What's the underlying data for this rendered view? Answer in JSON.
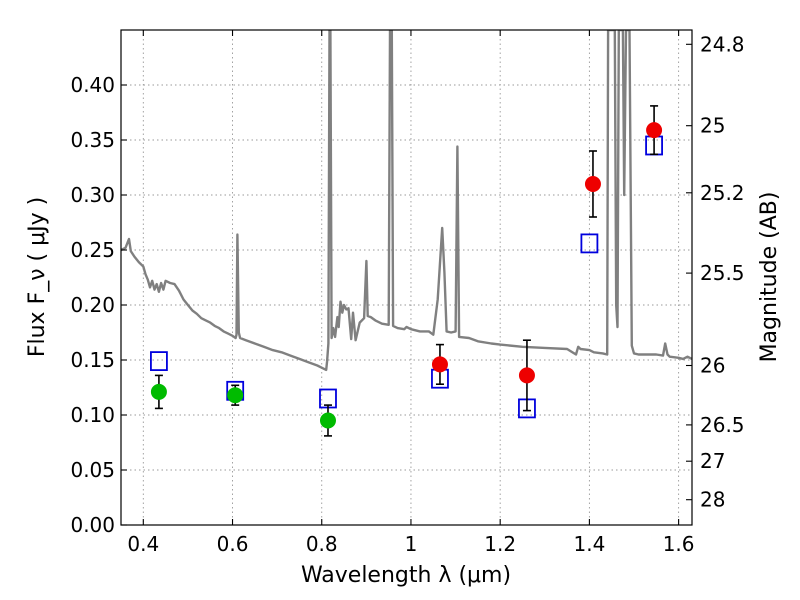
{
  "chart_data": {
    "type": "scatter",
    "xlabel": "Wavelength  λ (μm)",
    "ylabel": "Flux  F_ν  ( μJy )",
    "y2label": "Magnitude (AB)",
    "xlim": [
      0.35,
      1.63
    ],
    "ylim": [
      0,
      0.45
    ],
    "x_ticks": [
      0.4,
      0.6,
      0.8,
      1.0,
      1.2,
      1.4,
      1.6
    ],
    "x_tick_labels": [
      "0.4",
      "0.6",
      "0.8",
      "1",
      "1.2",
      "1.4",
      "1.6"
    ],
    "y_ticks": [
      0,
      0.05,
      0.1,
      0.15,
      0.2,
      0.25,
      0.3,
      0.35,
      0.4
    ],
    "y_tick_labels": [
      "0.00",
      "0.05",
      "0.10",
      "0.15",
      "0.20",
      "0.25",
      "0.30",
      "0.35",
      "0.40"
    ],
    "grid": true,
    "y2_ticks": [
      {
        "label": "24.8",
        "flux": 0.437
      },
      {
        "label": "25",
        "flux": 0.363
      },
      {
        "label": "25.2",
        "flux": 0.302
      },
      {
        "label": "25.5",
        "flux": 0.229
      },
      {
        "label": "26",
        "flux": 0.145
      },
      {
        "label": "26.5",
        "flux": 0.091
      },
      {
        "label": "27",
        "flux": 0.058
      },
      {
        "label": "28",
        "flux": 0.023
      }
    ],
    "series": [
      {
        "kind": "measured",
        "marker": "circle",
        "color": "#00bb00",
        "points": [
          {
            "x": 0.435,
            "y": 0.121,
            "yerr": 0.015
          },
          {
            "x": 0.606,
            "y": 0.118,
            "yerr": 0.009
          },
          {
            "x": 0.814,
            "y": 0.095,
            "yerr": 0.014
          }
        ]
      },
      {
        "kind": "measured",
        "marker": "circle",
        "color": "#ee0000",
        "points": [
          {
            "x": 1.065,
            "y": 0.146,
            "yerr": 0.018
          },
          {
            "x": 1.26,
            "y": 0.136,
            "yerr": 0.032
          },
          {
            "x": 1.408,
            "y": 0.31,
            "yerr": 0.03
          },
          {
            "x": 1.545,
            "y": 0.359,
            "yerr": 0.022
          }
        ]
      },
      {
        "kind": "model",
        "marker": "square",
        "color": "#0000dd",
        "points": [
          {
            "x": 0.435,
            "y": 0.149
          },
          {
            "x": 0.606,
            "y": 0.122
          },
          {
            "x": 0.814,
            "y": 0.115
          },
          {
            "x": 1.065,
            "y": 0.133
          },
          {
            "x": 1.26,
            "y": 0.106
          },
          {
            "x": 1.4,
            "y": 0.256
          },
          {
            "x": 1.545,
            "y": 0.345
          }
        ]
      },
      {
        "kind": "spectrum",
        "marker": "line",
        "color": "#808080",
        "points": [
          [
            0.35,
            0.25
          ],
          [
            0.36,
            0.252
          ],
          [
            0.368,
            0.26
          ],
          [
            0.372,
            0.249
          ],
          [
            0.38,
            0.244
          ],
          [
            0.39,
            0.239
          ],
          [
            0.4,
            0.235
          ],
          [
            0.405,
            0.228
          ],
          [
            0.41,
            0.223
          ],
          [
            0.415,
            0.216
          ],
          [
            0.42,
            0.222
          ],
          [
            0.425,
            0.214
          ],
          [
            0.43,
            0.219
          ],
          [
            0.435,
            0.212
          ],
          [
            0.44,
            0.22
          ],
          [
            0.445,
            0.214
          ],
          [
            0.45,
            0.222
          ],
          [
            0.46,
            0.22
          ],
          [
            0.47,
            0.219
          ],
          [
            0.48,
            0.213
          ],
          [
            0.49,
            0.205
          ],
          [
            0.5,
            0.2
          ],
          [
            0.51,
            0.195
          ],
          [
            0.52,
            0.192
          ],
          [
            0.53,
            0.188
          ],
          [
            0.54,
            0.186
          ],
          [
            0.55,
            0.184
          ],
          [
            0.56,
            0.181
          ],
          [
            0.57,
            0.179
          ],
          [
            0.58,
            0.176
          ],
          [
            0.59,
            0.174
          ],
          [
            0.6,
            0.172
          ],
          [
            0.607,
            0.17
          ],
          [
            0.609,
            0.173
          ],
          [
            0.611,
            0.264
          ],
          [
            0.614,
            0.175
          ],
          [
            0.617,
            0.17
          ],
          [
            0.63,
            0.168
          ],
          [
            0.65,
            0.165
          ],
          [
            0.67,
            0.162
          ],
          [
            0.69,
            0.159
          ],
          [
            0.71,
            0.157
          ],
          [
            0.73,
            0.154
          ],
          [
            0.75,
            0.151
          ],
          [
            0.77,
            0.148
          ],
          [
            0.79,
            0.145
          ],
          [
            0.8,
            0.143
          ],
          [
            0.81,
            0.141
          ],
          [
            0.812,
            0.149
          ],
          [
            0.815,
            0.165
          ],
          [
            0.8175,
            0.45
          ],
          [
            0.8195,
            0.45
          ],
          [
            0.822,
            0.17
          ],
          [
            0.826,
            0.179
          ],
          [
            0.83,
            0.171
          ],
          [
            0.835,
            0.189
          ],
          [
            0.838,
            0.18
          ],
          [
            0.842,
            0.203
          ],
          [
            0.846,
            0.193
          ],
          [
            0.85,
            0.2
          ],
          [
            0.855,
            0.196
          ],
          [
            0.86,
            0.197
          ],
          [
            0.866,
            0.169
          ],
          [
            0.87,
            0.193
          ],
          [
            0.876,
            0.168
          ],
          [
            0.885,
            0.184
          ],
          [
            0.895,
            0.188
          ],
          [
            0.9,
            0.24
          ],
          [
            0.903,
            0.19
          ],
          [
            0.91,
            0.189
          ],
          [
            0.92,
            0.186
          ],
          [
            0.935,
            0.183
          ],
          [
            0.95,
            0.182
          ],
          [
            0.953,
            0.45
          ],
          [
            0.957,
            0.45
          ],
          [
            0.96,
            0.181
          ],
          [
            0.97,
            0.179
          ],
          [
            0.985,
            0.178
          ],
          [
            0.99,
            0.18
          ],
          [
            1.0,
            0.178
          ],
          [
            1.02,
            0.176
          ],
          [
            1.04,
            0.176
          ],
          [
            1.05,
            0.173
          ],
          [
            1.06,
            0.205
          ],
          [
            1.07,
            0.27
          ],
          [
            1.075,
            0.23
          ],
          [
            1.08,
            0.176
          ],
          [
            1.09,
            0.175
          ],
          [
            1.1,
            0.176
          ],
          [
            1.104,
            0.344
          ],
          [
            1.108,
            0.171
          ],
          [
            1.13,
            0.17
          ],
          [
            1.15,
            0.167
          ],
          [
            1.18,
            0.165
          ],
          [
            1.2,
            0.164
          ],
          [
            1.25,
            0.162
          ],
          [
            1.3,
            0.161
          ],
          [
            1.35,
            0.16
          ],
          [
            1.37,
            0.155
          ],
          [
            1.375,
            0.162
          ],
          [
            1.38,
            0.16
          ],
          [
            1.4,
            0.159
          ],
          [
            1.41,
            0.157
          ],
          [
            1.43,
            0.156
          ],
          [
            1.44,
            0.155
          ],
          [
            1.442,
            0.45
          ],
          [
            1.457,
            0.45
          ],
          [
            1.46,
            0.2
          ],
          [
            1.463,
            0.18
          ],
          [
            1.466,
            0.45
          ],
          [
            1.475,
            0.45
          ],
          [
            1.478,
            0.3
          ],
          [
            1.482,
            0.45
          ],
          [
            1.49,
            0.45
          ],
          [
            1.495,
            0.163
          ],
          [
            1.5,
            0.156
          ],
          [
            1.51,
            0.155
          ],
          [
            1.53,
            0.155
          ],
          [
            1.55,
            0.155
          ],
          [
            1.565,
            0.154
          ],
          [
            1.57,
            0.165
          ],
          [
            1.575,
            0.155
          ],
          [
            1.58,
            0.153
          ],
          [
            1.6,
            0.152
          ],
          [
            1.61,
            0.151
          ],
          [
            1.62,
            0.153
          ],
          [
            1.63,
            0.151
          ]
        ]
      }
    ]
  }
}
